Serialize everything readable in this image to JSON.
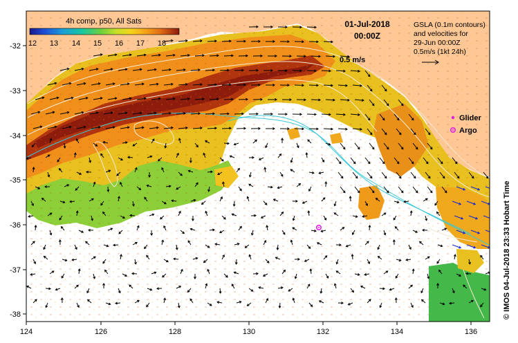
{
  "colorbar": {
    "title": "4h comp, p50, All Sats",
    "ticks": [
      "12",
      "13",
      "14",
      "15",
      "16",
      "17",
      "18"
    ],
    "colors": [
      "#1a1a8c",
      "#1f4fd6",
      "#1a9ed8",
      "#17c7a0",
      "#6fd03c",
      "#c8e02a",
      "#f5d21c",
      "#f5a01a",
      "#e06a16",
      "#b23a12",
      "#8c1a0e"
    ]
  },
  "datetime": {
    "date": "01-Jul-2018",
    "time": "00:00Z"
  },
  "gsla_note": {
    "line1": "GSLA (0.1m contours)",
    "line2": "and velocities for",
    "line3": "29-Jun 00:00Z",
    "line4": "0.5m/s (1kt 24h)"
  },
  "ref_arrow_label": "0.5 m/s",
  "legend": {
    "glider": {
      "label": "Glider",
      "color": "#e020e0"
    },
    "argo": {
      "label": "Argo",
      "color": "#e020e0"
    }
  },
  "credit": "© IMOS 04-Jul-2018 23:33 Hobart Time",
  "axes": {
    "x_ticks": [
      "124",
      "126",
      "128",
      "130",
      "132",
      "134",
      "136"
    ],
    "y_ticks": [
      "-32",
      "-33",
      "-34",
      "-35",
      "-36",
      "-37",
      "-38"
    ]
  },
  "colors": {
    "land": "#fdc896",
    "ocean": "#ffffff",
    "contour": "#f4e9d4",
    "current_line": "#39c8d8"
  }
}
